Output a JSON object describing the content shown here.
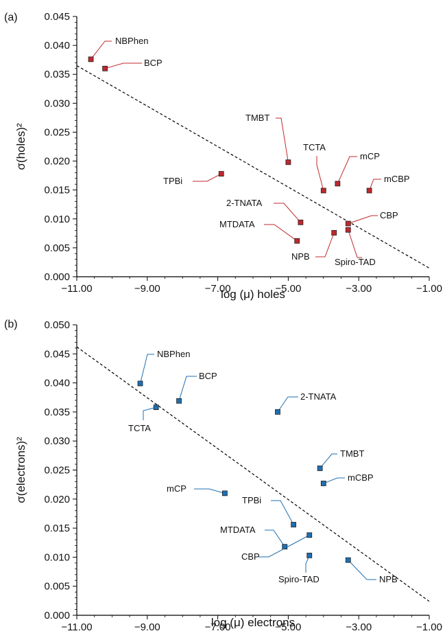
{
  "chart_data": [
    {
      "panel_label": "(a)",
      "type": "scatter",
      "xlabel": "log (μ) holes",
      "ylabel": "σ(holes)²",
      "xlim": [
        -11,
        -1
      ],
      "ylim": [
        0,
        0.045
      ],
      "x_ticks": [
        "−11.00",
        "−9.00",
        "−7.00",
        "−5.00",
        "−3.00",
        "−1.00"
      ],
      "y_ticks": [
        "0.000",
        "0.005",
        "0.010",
        "0.015",
        "0.020",
        "0.025",
        "0.030",
        "0.035",
        "0.040",
        "0.045"
      ],
      "marker_color": "#c0282d",
      "leader_color": "#c0282d",
      "trendline": {
        "x": [
          -11,
          -1
        ],
        "y": [
          0.0365,
          0.0015
        ],
        "style": "dashed"
      },
      "points": [
        {
          "label": "NBPhen",
          "x": -10.6,
          "y": 0.0376
        },
        {
          "label": "BCP",
          "x": -10.2,
          "y": 0.036
        },
        {
          "label": "TMBT",
          "x": -5.0,
          "y": 0.0198
        },
        {
          "label": "TCTA",
          "x": -4.0,
          "y": 0.0149
        },
        {
          "label": "mCP",
          "x": -3.6,
          "y": 0.0161
        },
        {
          "label": "mCBP",
          "x": -2.7,
          "y": 0.0149
        },
        {
          "label": "TPBi",
          "x": -6.9,
          "y": 0.0178
        },
        {
          "label": "2-TNATA",
          "x": -4.65,
          "y": 0.0094
        },
        {
          "label": "MTDATA",
          "x": -4.75,
          "y": 0.0062
        },
        {
          "label": "CBP",
          "x": -3.3,
          "y": 0.0092
        },
        {
          "label": "NPB",
          "x": -3.7,
          "y": 0.0076
        },
        {
          "label": "Spiro-TAD",
          "x": -3.3,
          "y": 0.0081
        }
      ]
    },
    {
      "panel_label": "(b)",
      "type": "scatter",
      "xlabel": "log (μ) electrons",
      "ylabel": "σ(electrons)²",
      "xlim": [
        -11,
        -1
      ],
      "ylim": [
        0,
        0.05
      ],
      "x_ticks": [
        "−11.00",
        "−9.00",
        "−7.00",
        "−5.00",
        "−3.00",
        "−1.00"
      ],
      "y_ticks": [
        "0.000",
        "0.005",
        "0.010",
        "0.015",
        "0.020",
        "0.025",
        "0.030",
        "0.035",
        "0.040",
        "0.045",
        "0.050"
      ],
      "marker_color": "#1f6fb2",
      "leader_color": "#1f6fb2",
      "trendline": {
        "x": [
          -11,
          -1
        ],
        "y": [
          0.0462,
          0.0024
        ],
        "style": "dashed"
      },
      "points": [
        {
          "label": "NBPhen",
          "x": -9.2,
          "y": 0.0399
        },
        {
          "label": "BCP",
          "x": -8.1,
          "y": 0.0369
        },
        {
          "label": "TCTA",
          "x": -8.75,
          "y": 0.0358
        },
        {
          "label": "2-TNATA",
          "x": -5.3,
          "y": 0.035
        },
        {
          "label": "TMBT",
          "x": -4.1,
          "y": 0.0253
        },
        {
          "label": "mCBP",
          "x": -4.0,
          "y": 0.0227
        },
        {
          "label": "mCP",
          "x": -6.8,
          "y": 0.021
        },
        {
          "label": "TPBi",
          "x": -4.85,
          "y": 0.0156
        },
        {
          "label": "MTDATA",
          "x": -5.1,
          "y": 0.0118
        },
        {
          "label": "CBP",
          "x": -4.4,
          "y": 0.0138
        },
        {
          "label": "Spiro-TAD",
          "x": -4.4,
          "y": 0.0103
        },
        {
          "label": "NPB",
          "x": -3.3,
          "y": 0.0095
        }
      ]
    }
  ]
}
